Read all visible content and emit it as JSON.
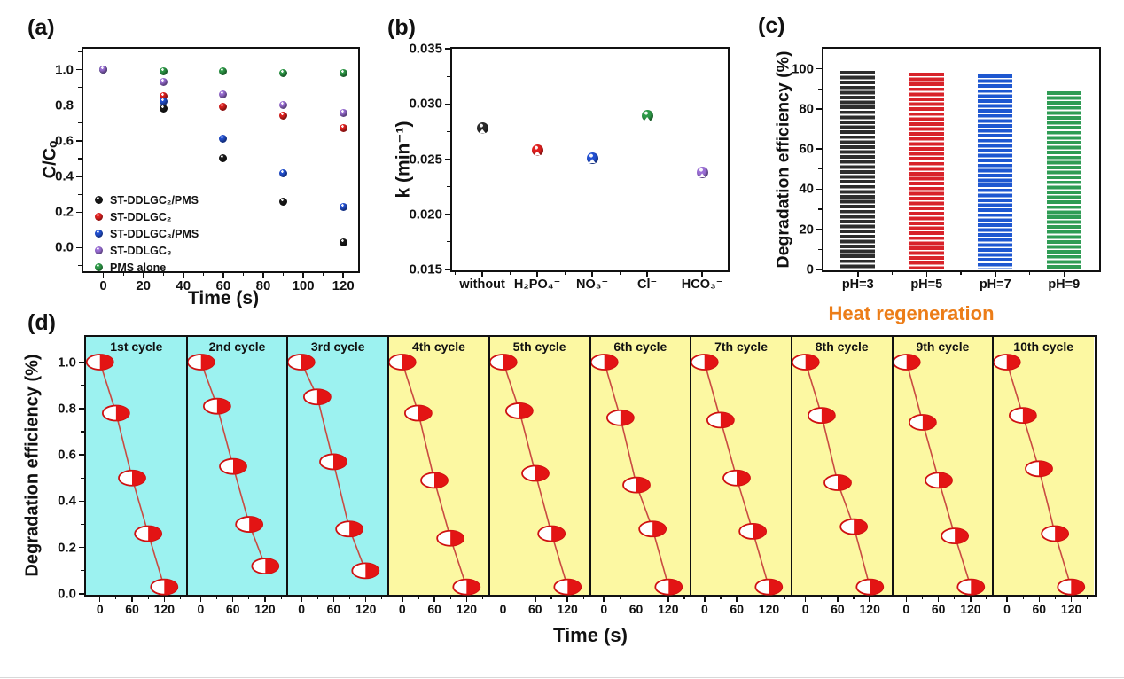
{
  "figure": {
    "background": "#ffffff",
    "panel_order": [
      "a",
      "b",
      "c",
      "d"
    ]
  },
  "chart_data": [
    {
      "id": "a",
      "type": "scatter",
      "panel_label": "(a)",
      "xlabel": "Time (s)",
      "ylabel": "C/Cₒ",
      "x": [
        0,
        30,
        60,
        90,
        120
      ],
      "xticks": [
        0,
        20,
        40,
        60,
        80,
        100,
        120
      ],
      "yticks": [
        "0.0",
        "0.2",
        "0.4",
        "0.6",
        "0.8",
        "1.0"
      ],
      "xlim": [
        -10,
        127
      ],
      "ylim": [
        -0.127,
        1.117
      ],
      "grid": false,
      "legend_position": "bottom-left",
      "draw_order": [
        0,
        1,
        2,
        4,
        3
      ],
      "series": [
        {
          "name": "ST-DDLGC₂/PMS",
          "color": "#1a1a1a",
          "values": [
            1.0,
            0.78,
            0.5,
            0.26,
            0.03
          ]
        },
        {
          "name": "ST-DDLGC₂",
          "color": "#e1201f",
          "values": [
            1.0,
            0.85,
            0.79,
            0.74,
            0.67
          ]
        },
        {
          "name": "ST-DDLGC₃/PMS",
          "color": "#2250d2",
          "values": [
            1.0,
            0.82,
            0.61,
            0.42,
            0.23
          ]
        },
        {
          "name": "ST-DDLGC₃",
          "color": "#9b6fd6",
          "values": [
            1.0,
            0.93,
            0.86,
            0.8,
            0.755
          ]
        },
        {
          "name": "PMS alone",
          "color": "#2d9a47",
          "values": [
            1.0,
            0.99,
            0.99,
            0.98,
            0.98
          ]
        }
      ]
    },
    {
      "id": "b",
      "type": "scatter",
      "panel_label": "(b)",
      "ylabel": "k (min⁻¹)",
      "categories": [
        "without",
        "H₂PO₄⁻",
        "NO₃⁻",
        "Cl⁻",
        "HCO₃⁻"
      ],
      "values": [
        0.0278,
        0.0258,
        0.0251,
        0.0289,
        0.0238
      ],
      "colors": [
        "#2b2b2b",
        "#e1201f",
        "#2250d2",
        "#2d9a47",
        "#9b6fd6"
      ],
      "yticks": [
        "0.015",
        "0.020",
        "0.025",
        "0.030",
        "0.035"
      ],
      "ylim": [
        0.015,
        0.035
      ],
      "grid": false
    },
    {
      "id": "c",
      "type": "bar",
      "panel_label": "(c)",
      "ylabel": "Degradation efficiency (%)",
      "categories": [
        "pH=3",
        "pH=5",
        "pH=7",
        "pH=9"
      ],
      "values": [
        99,
        98,
        97,
        89
      ],
      "colors": [
        "#2d2d2d",
        "#d8232a",
        "#1e57d0",
        "#2e9c54"
      ],
      "yticks": [
        0,
        20,
        40,
        60,
        80,
        100
      ],
      "ylim": [
        0,
        110
      ],
      "bar_style": "horizontal-stripes",
      "grid": false
    },
    {
      "id": "d",
      "type": "line",
      "panel_label": "(d)",
      "xlabel": "Time (s)",
      "ylabel": "Degradation efficiency (%)",
      "x": [
        0,
        30,
        60,
        90,
        120
      ],
      "xticks": [
        0,
        60,
        120
      ],
      "yticks": [
        "0.0",
        "0.2",
        "0.4",
        "0.6",
        "0.8",
        "1.0"
      ],
      "xlim": [
        -26,
        162
      ],
      "ylim": [
        0,
        1.109
      ],
      "grid": false,
      "line_color": "#c94b42",
      "marker": {
        "fill_left": "#ffffff",
        "fill_right": "#e31414",
        "border": "#cf1010"
      },
      "backgrounds": {
        "fresh": "#9cf2f0",
        "regenerated": "#fcf8a2"
      },
      "annotation": {
        "text": "Heat regeneration",
        "color": "#ec7d18"
      },
      "panels": [
        {
          "title": "1st cycle",
          "bg": "fresh",
          "values": [
            1.0,
            0.78,
            0.5,
            0.26,
            0.03
          ]
        },
        {
          "title": "2nd cycle",
          "bg": "fresh",
          "values": [
            1.0,
            0.81,
            0.55,
            0.3,
            0.12
          ]
        },
        {
          "title": "3rd cycle",
          "bg": "fresh",
          "values": [
            1.0,
            0.85,
            0.57,
            0.28,
            0.1
          ]
        },
        {
          "title": "4th cycle",
          "bg": "regenerated",
          "values": [
            1.0,
            0.78,
            0.49,
            0.24,
            0.03
          ]
        },
        {
          "title": "5th cycle",
          "bg": "regenerated",
          "values": [
            1.0,
            0.79,
            0.52,
            0.26,
            0.03
          ]
        },
        {
          "title": "6th cycle",
          "bg": "regenerated",
          "values": [
            1.0,
            0.76,
            0.47,
            0.28,
            0.03
          ]
        },
        {
          "title": "7th cycle",
          "bg": "regenerated",
          "values": [
            1.0,
            0.75,
            0.5,
            0.27,
            0.03
          ]
        },
        {
          "title": "8th cycle",
          "bg": "regenerated",
          "values": [
            1.0,
            0.77,
            0.48,
            0.29,
            0.03
          ]
        },
        {
          "title": "9th cycle",
          "bg": "regenerated",
          "values": [
            1.0,
            0.74,
            0.49,
            0.25,
            0.03
          ]
        },
        {
          "title": "10th cycle",
          "bg": "regenerated",
          "values": [
            1.0,
            0.77,
            0.54,
            0.26,
            0.03
          ]
        }
      ]
    }
  ]
}
